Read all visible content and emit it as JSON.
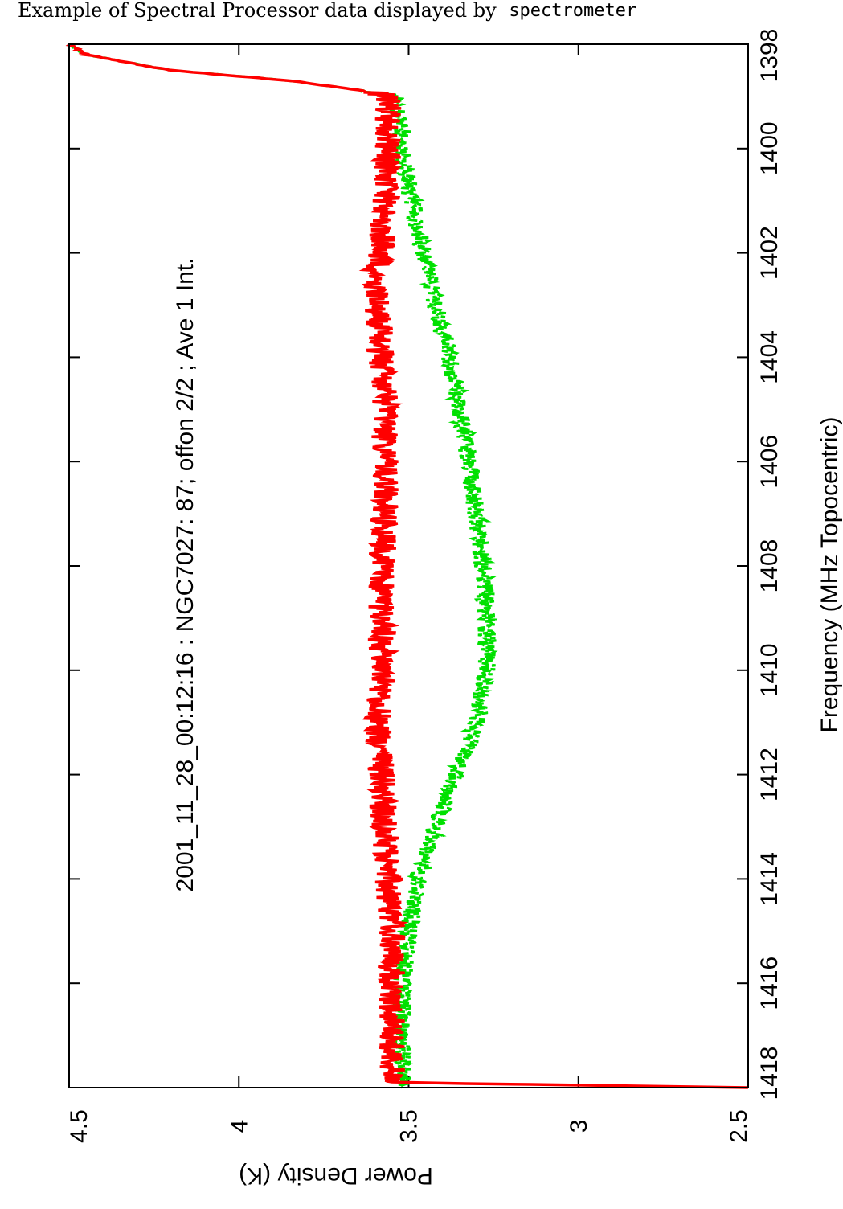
{
  "caption": {
    "prefix": "Example of Spectral Processor data displayed by",
    "program": "spectrometer"
  },
  "chart_data": {
    "type": "line",
    "title": "2001_11_28_00:12:16 : NGC7027: 87; offon 2/2 ; Ave 1 Int.",
    "xlabel": "Frequency (MHz Topocentric)",
    "ylabel": "Power Density (K)",
    "xlim": [
      1398,
      1418
    ],
    "ylim": [
      2.5,
      4.5
    ],
    "x_ticks": [
      "1398",
      "1400",
      "1402",
      "1404",
      "1406",
      "1408",
      "1410",
      "1412",
      "1414",
      "1416",
      "1418"
    ],
    "y_ticks": [
      "2.5",
      "3",
      "3.5",
      "4",
      "4.5"
    ],
    "grid": false,
    "series": [
      {
        "color": "#ff0000",
        "style": "solid",
        "x": [
          1398.0,
          1398.2,
          1398.5,
          1398.7,
          1398.9,
          1399.0,
          1399.5,
          1400.0,
          1401.0,
          1402.0,
          1402.5,
          1403.0,
          1404.0,
          1405.0,
          1406.0,
          1407.0,
          1408.0,
          1409.0,
          1410.0,
          1411.0,
          1412.0,
          1413.0,
          1414.0,
          1415.0,
          1416.0,
          1417.0,
          1417.9,
          1418.0
        ],
        "y": [
          4.5,
          4.45,
          4.2,
          3.85,
          3.62,
          3.56,
          3.56,
          3.56,
          3.57,
          3.58,
          3.6,
          3.59,
          3.58,
          3.57,
          3.57,
          3.57,
          3.58,
          3.58,
          3.58,
          3.59,
          3.58,
          3.57,
          3.56,
          3.55,
          3.55,
          3.55,
          3.55,
          2.5
        ]
      },
      {
        "color": "#00e000",
        "style": "dashed",
        "x": [
          1398.0,
          1398.2,
          1398.5,
          1398.7,
          1398.9,
          1399.0,
          1399.5,
          1400.0,
          1401.0,
          1402.0,
          1403.0,
          1404.0,
          1405.0,
          1406.0,
          1407.0,
          1408.0,
          1409.0,
          1410.0,
          1411.0,
          1412.0,
          1413.0,
          1414.0,
          1415.0,
          1416.0,
          1417.0,
          1418.0
        ],
        "y": [
          4.5,
          4.45,
          4.2,
          3.85,
          3.62,
          3.54,
          3.52,
          3.52,
          3.49,
          3.46,
          3.42,
          3.38,
          3.35,
          3.32,
          3.3,
          3.28,
          3.27,
          3.27,
          3.3,
          3.36,
          3.42,
          3.47,
          3.5,
          3.52,
          3.52,
          3.52
        ]
      }
    ]
  }
}
